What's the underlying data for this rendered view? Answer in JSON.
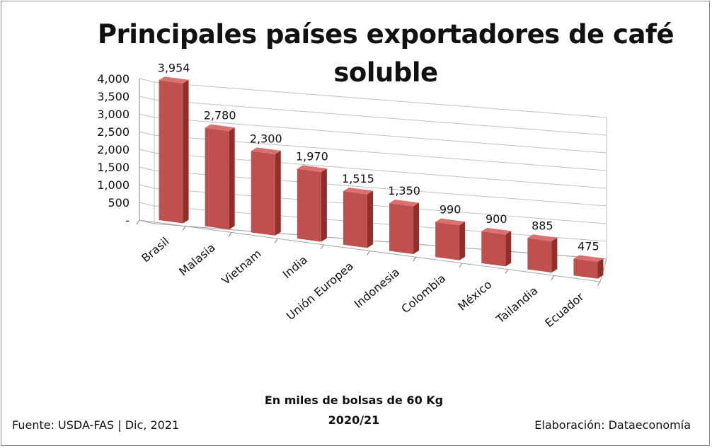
{
  "title_line1": "Principales países exportadores de café",
  "title_line2": "soluble",
  "subtitle_units": "En miles de bolsas de 60 Kg",
  "subtitle_period": "2020/21",
  "source": "Fuente:  USDA-FAS | Dic, 2021",
  "credit": "Elaboración: Dataeconomía",
  "colors": {
    "bar_front": "#c0504d",
    "bar_side": "#8e2f2c",
    "bar_top": "#d9716e",
    "grid": "#bfbfbf"
  },
  "chart_data": {
    "type": "bar",
    "title": "Principales países exportadores de café soluble",
    "categories": [
      "Brasil",
      "Malasia",
      "Vietnam",
      "India",
      "Unión Europea",
      "Indonesia",
      "Colombia",
      "México",
      "Tailandia",
      "Ecuador"
    ],
    "values": [
      3954,
      2780,
      2300,
      1970,
      1515,
      1350,
      990,
      900,
      885,
      475
    ],
    "value_labels": [
      "3,954",
      "2,780",
      "2,300",
      "1,970",
      "1,515",
      "1,350",
      "990",
      "900",
      "885",
      "475"
    ],
    "ylim": [
      0,
      4000
    ],
    "yticks": [
      0,
      500,
      1000,
      1500,
      2000,
      2500,
      3000,
      3500,
      4000
    ],
    "ytick_labels": [
      "-",
      "500",
      "1,000",
      "1,500",
      "2,000",
      "2,500",
      "3,000",
      "3,500",
      "4,000"
    ],
    "grid": true,
    "style": "3d-column"
  }
}
